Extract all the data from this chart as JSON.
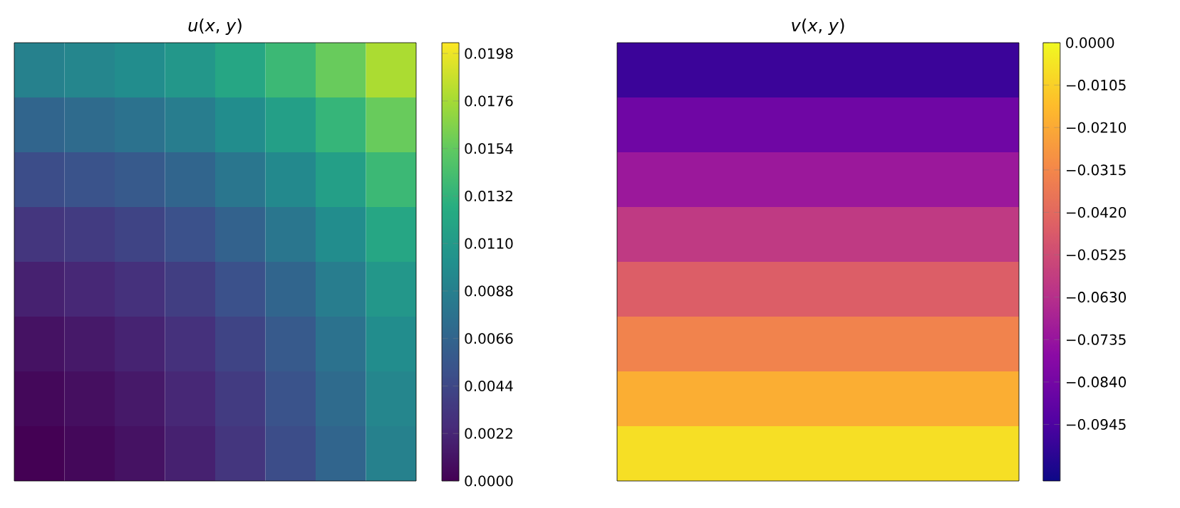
{
  "chart_data": [
    {
      "type": "heatmap",
      "title": "*u*(*x*, *y*)",
      "categories": [
        null,
        null,
        null,
        null,
        null,
        null,
        null,
        null
      ],
      "y_categories": [
        null,
        null,
        null,
        null,
        null,
        null,
        null,
        null
      ],
      "cells": [
        [
          0.0089,
          0.0093,
          0.0099,
          0.0108,
          0.0121,
          0.0137,
          0.0156,
          0.0178
        ],
        [
          0.0067,
          0.0071,
          0.0077,
          0.0086,
          0.0099,
          0.0115,
          0.0134,
          0.0156
        ],
        [
          0.0048,
          0.0052,
          0.0058,
          0.0067,
          0.008,
          0.0096,
          0.0115,
          0.0137
        ],
        [
          0.0032,
          0.0036,
          0.0042,
          0.0051,
          0.0064,
          0.008,
          0.0099,
          0.0121
        ],
        [
          0.0019,
          0.0023,
          0.0029,
          0.0038,
          0.0051,
          0.0067,
          0.0086,
          0.0108
        ],
        [
          0.001,
          0.0014,
          0.002,
          0.0029,
          0.0042,
          0.0058,
          0.0077,
          0.0099
        ],
        [
          0.0004,
          0.0008,
          0.0014,
          0.0023,
          0.0036,
          0.0052,
          0.0071,
          0.0093
        ],
        [
          0.0,
          0.0004,
          0.001,
          0.0019,
          0.0032,
          0.0048,
          0.0067,
          0.0089
        ]
      ],
      "clim": [
        0,
        0.0203
      ],
      "cticks": [
        {
          "value": 0,
          "label": "0.0000"
        },
        {
          "value": 0.0022,
          "label": "0.0022"
        },
        {
          "value": 0.0044,
          "label": "0.0044"
        },
        {
          "value": 0.0066,
          "label": "0.0066"
        },
        {
          "value": 0.0088,
          "label": "0.0088"
        },
        {
          "value": 0.011,
          "label": "0.0110"
        },
        {
          "value": 0.0132,
          "label": "0.0132"
        },
        {
          "value": 0.0154,
          "label": "0.0154"
        },
        {
          "value": 0.0176,
          "label": "0.0176"
        },
        {
          "value": 0.0198,
          "label": "0.0198"
        }
      ]
    },
    {
      "type": "heatmap",
      "title": "*v*(*x*, *y*)",
      "categories": [
        null
      ],
      "y_categories": [
        null,
        null,
        null,
        null,
        null,
        null,
        null,
        null
      ],
      "cells": [
        [
          -0.0984
        ],
        [
          -0.0853
        ],
        [
          -0.0722
        ],
        [
          -0.0591
        ],
        [
          -0.0459
        ],
        [
          -0.0328
        ],
        [
          -0.0197
        ],
        [
          -0.0066
        ]
      ],
      "clim": [
        -0.1085,
        0
      ],
      "cticks": [
        {
          "value": 0,
          "label": "0.0000"
        },
        {
          "value": -0.0105,
          "label": "−0.0105"
        },
        {
          "value": -0.021,
          "label": "−0.0210"
        },
        {
          "value": -0.0315,
          "label": "−0.0315"
        },
        {
          "value": -0.042,
          "label": "−0.0420"
        },
        {
          "value": -0.0525,
          "label": "−0.0525"
        },
        {
          "value": -0.063,
          "label": "−0.0630"
        },
        {
          "value": -0.0735,
          "label": "−0.0735"
        },
        {
          "value": -0.084,
          "label": "−0.0840"
        },
        {
          "value": -0.0945,
          "label": "−0.0945"
        }
      ]
    }
  ]
}
